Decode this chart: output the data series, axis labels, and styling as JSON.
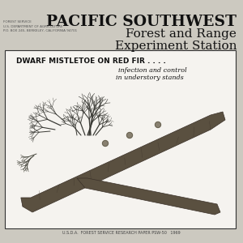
{
  "bg_color": "#ccc9c0",
  "title_line1": "PACIFIC SOUTHWEST",
  "title_line2": "Forest and Range",
  "title_line3": "Experiment Station",
  "forest_service_text": "FOREST SERVICE\nU.S. DEPARTMENT OF AGRICULTURE\nP.O. BOX 245, BERKELEY, CALIFORNIA 94701",
  "box_title": "DWARF MISTLETOE ON RED FIR . . . .",
  "box_sub1": "infection and control",
  "box_sub2": "in understory stands",
  "footer": "U.S.D.A.  FOREST SERVICE RESEARCH PAPER PSW-50   1969",
  "title_color": "#111111",
  "box_bg": "#f5f3ef",
  "box_border": "#333333",
  "text_dark": "#111111",
  "branch_color": "#555555",
  "branch_dark": "#333333"
}
